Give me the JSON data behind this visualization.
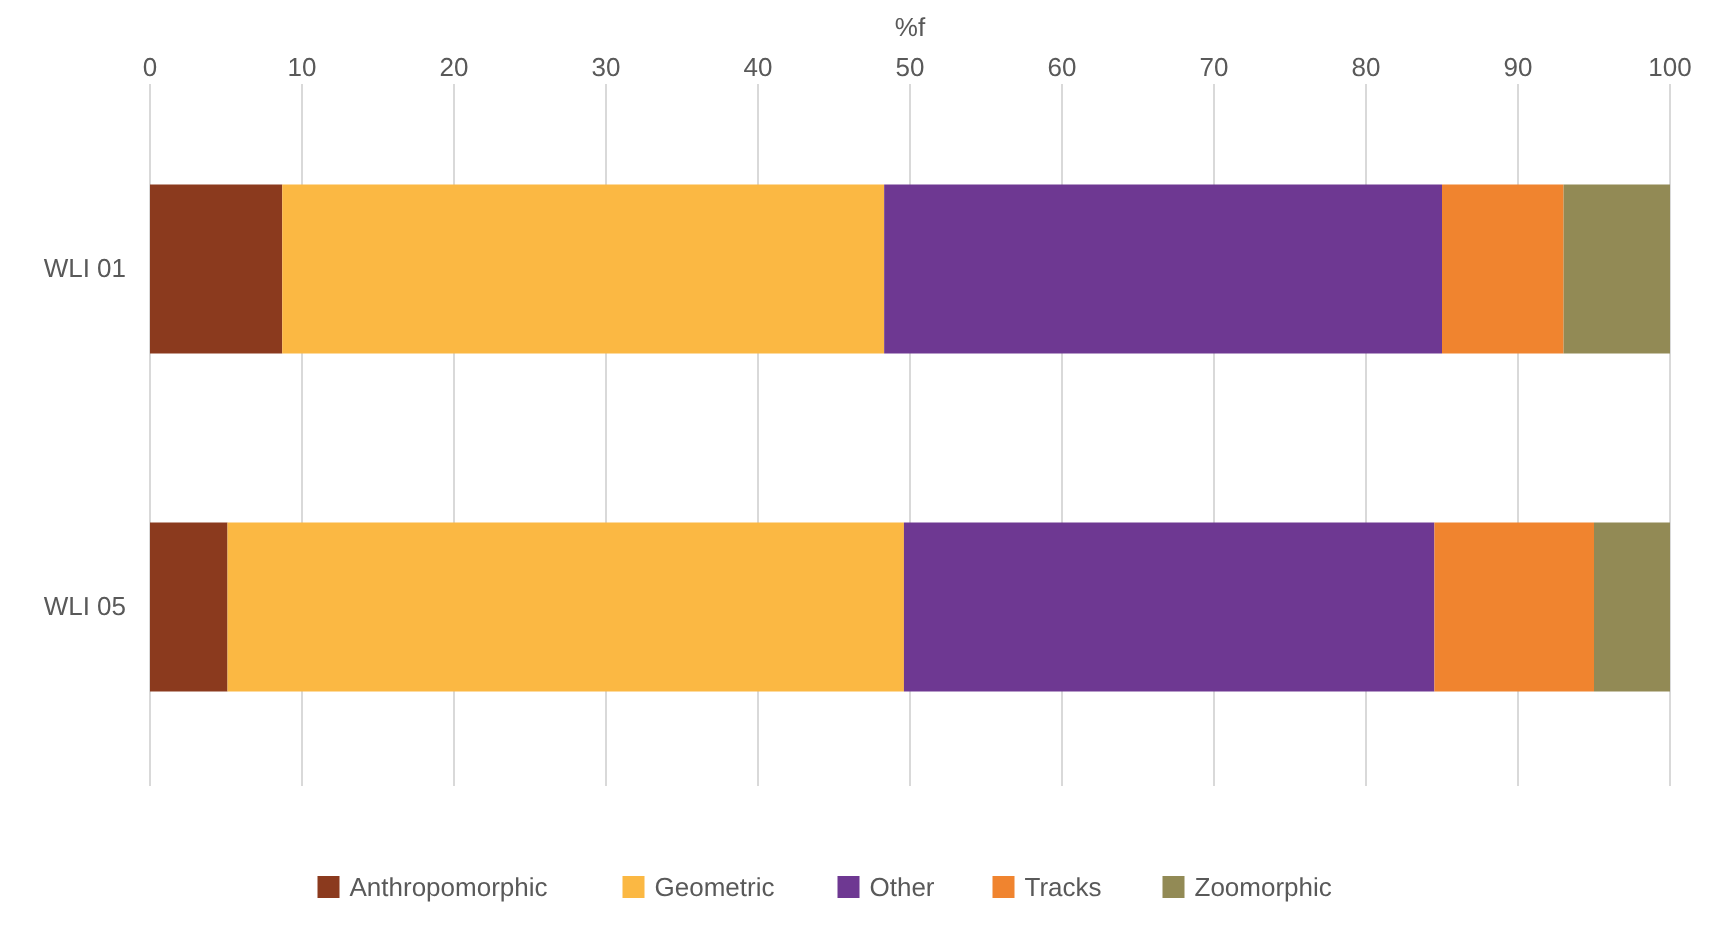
{
  "chart_data": {
    "type": "bar",
    "orientation": "horizontal",
    "stacked": true,
    "xlabel": "%f",
    "categories": [
      "WLI 01",
      "WLI 05"
    ],
    "series": [
      {
        "name": "Anthropomorphic",
        "color": "#8b3a1e",
        "values": [
          8.7,
          5.1
        ]
      },
      {
        "name": "Geometric",
        "color": "#fbb843",
        "values": [
          39.6,
          44.5
        ]
      },
      {
        "name": "Other",
        "color": "#6e3892",
        "values": [
          36.7,
          34.9
        ]
      },
      {
        "name": "Tracks",
        "color": "#f0842f",
        "values": [
          8.0,
          10.5
        ]
      },
      {
        "name": "Zoomorphic",
        "color": "#928a55",
        "values": [
          7.0,
          5.0
        ]
      }
    ],
    "xlim": [
      0,
      100
    ],
    "xticks": [
      0,
      10,
      20,
      30,
      40,
      50,
      60,
      70,
      80,
      90,
      100
    ],
    "grid": "x",
    "legend": "bottom"
  }
}
